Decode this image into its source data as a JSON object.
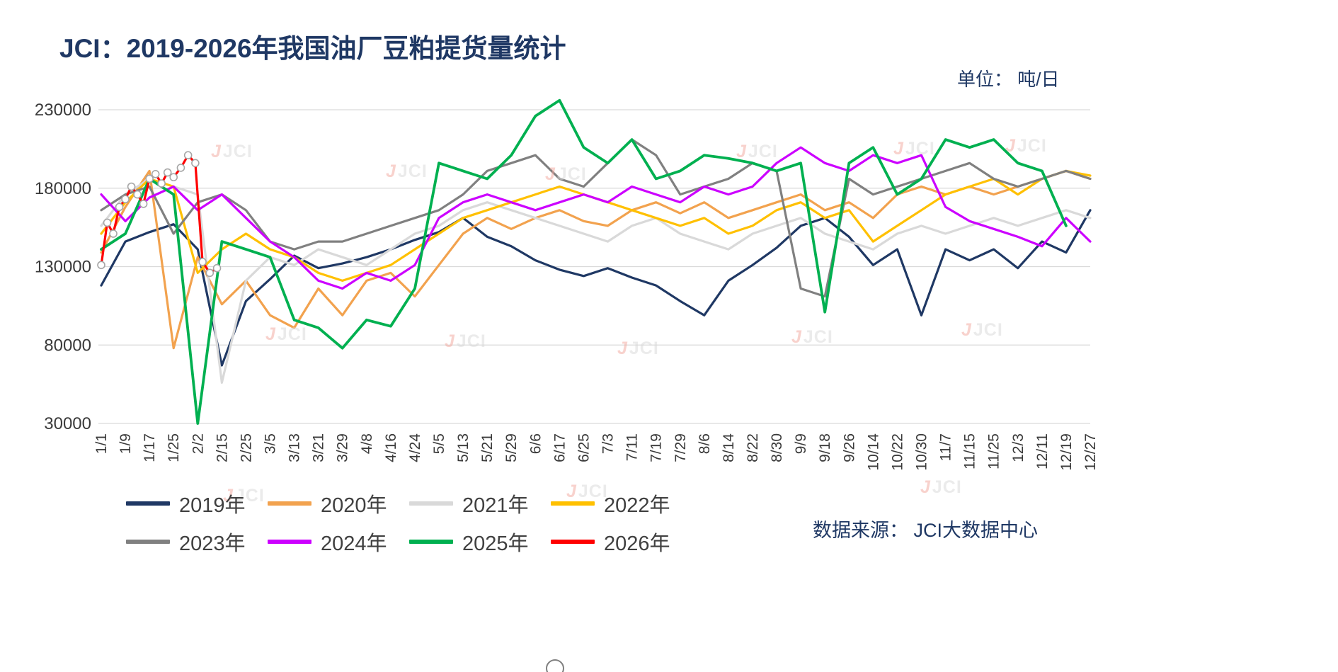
{
  "title": "JCI：2019-2026年我国油厂豆粕提货量统计",
  "unit_label": "单位： 吨/日",
  "source_label": "数据来源： JCI大数据中心",
  "watermark_text": "JCI",
  "colors": {
    "title": "#1F3864",
    "axis_text": "#3A3A3A",
    "grid": "#D9D9D9",
    "background": "#FFFFFF",
    "marker_fill": "#FFFFFF",
    "marker_stroke": "#A6A6A6"
  },
  "chart_data": {
    "type": "line",
    "title": "JCI：2019-2026年我国油厂豆粕提货量统计",
    "xlabel": "",
    "ylabel": "吨/日",
    "ylim": [
      30000,
      230000
    ],
    "yticks": [
      30000,
      80000,
      130000,
      180000,
      230000
    ],
    "grid": true,
    "legend_position": "bottom",
    "categories": [
      "1/1",
      "1/9",
      "1/17",
      "1/25",
      "2/2",
      "2/15",
      "2/25",
      "3/5",
      "3/13",
      "3/21",
      "3/29",
      "4/8",
      "4/16",
      "4/24",
      "5/5",
      "5/13",
      "5/21",
      "5/29",
      "6/6",
      "6/17",
      "6/25",
      "7/3",
      "7/11",
      "7/19",
      "7/29",
      "8/6",
      "8/14",
      "8/22",
      "8/30",
      "9/9",
      "9/18",
      "9/26",
      "10/14",
      "10/22",
      "10/30",
      "11/7",
      "11/15",
      "11/25",
      "12/3",
      "12/11",
      "12/19",
      "12/27"
    ],
    "series": [
      {
        "name": "2019年",
        "color": "#1F3864",
        "values": [
          118000,
          146000,
          152000,
          157000,
          141000,
          67000,
          108000,
          122000,
          137000,
          129000,
          132000,
          136000,
          141000,
          147000,
          152000,
          161000,
          149000,
          143000,
          134000,
          128000,
          124000,
          129000,
          123000,
          118000,
          108000,
          99000,
          121000,
          131000,
          142000,
          156000,
          161000,
          149000,
          131000,
          141000,
          99000,
          141000,
          134000,
          141000,
          129000,
          146000,
          139000,
          166000
        ]
      },
      {
        "name": "2020年",
        "color": "#F2A24E",
        "values": [
          139000,
          168000,
          191000,
          78000,
          136000,
          106000,
          121000,
          99000,
          91000,
          116000,
          99000,
          121000,
          126000,
          111000,
          131000,
          151000,
          161000,
          154000,
          161000,
          166000,
          159000,
          156000,
          166000,
          171000,
          164000,
          171000,
          161000,
          166000,
          171000,
          176000,
          166000,
          171000,
          161000,
          176000,
          181000,
          176000,
          181000,
          176000,
          181000,
          186000,
          191000,
          186000
        ]
      },
      {
        "name": "2021年",
        "color": "#D9D9D9",
        "values": [
          156000,
          176000,
          186000,
          181000,
          176000,
          56000,
          121000,
          136000,
          131000,
          141000,
          136000,
          131000,
          141000,
          151000,
          156000,
          166000,
          171000,
          166000,
          161000,
          156000,
          151000,
          146000,
          156000,
          161000,
          151000,
          146000,
          141000,
          151000,
          156000,
          161000,
          151000,
          146000,
          141000,
          151000,
          156000,
          151000,
          156000,
          161000,
          156000,
          161000,
          166000,
          161000
        ]
      },
      {
        "name": "2022年",
        "color": "#FFC000",
        "values": [
          151000,
          171000,
          186000,
          181000,
          126000,
          141000,
          151000,
          141000,
          136000,
          126000,
          121000,
          126000,
          131000,
          141000,
          151000,
          161000,
          166000,
          171000,
          176000,
          181000,
          176000,
          171000,
          166000,
          161000,
          156000,
          161000,
          151000,
          156000,
          166000,
          171000,
          161000,
          166000,
          146000,
          156000,
          166000,
          176000,
          181000,
          186000,
          176000,
          186000,
          191000,
          188000
        ]
      },
      {
        "name": "2023年",
        "color": "#808080",
        "values": [
          166000,
          176000,
          181000,
          151000,
          171000,
          176000,
          166000,
          146000,
          141000,
          146000,
          146000,
          151000,
          156000,
          161000,
          166000,
          176000,
          191000,
          196000,
          201000,
          186000,
          181000,
          196000,
          211000,
          201000,
          176000,
          181000,
          186000,
          196000,
          191000,
          116000,
          111000,
          186000,
          176000,
          181000,
          186000,
          191000,
          196000,
          186000,
          181000,
          186000,
          191000,
          186000
        ]
      },
      {
        "name": "2024年",
        "color": "#CC00FF",
        "values": [
          176000,
          159000,
          174000,
          181000,
          166000,
          176000,
          161000,
          146000,
          136000,
          121000,
          116000,
          126000,
          121000,
          131000,
          161000,
          171000,
          176000,
          171000,
          166000,
          171000,
          176000,
          171000,
          181000,
          176000,
          171000,
          181000,
          176000,
          181000,
          196000,
          206000,
          196000,
          191000,
          201000,
          196000,
          201000,
          168000,
          159000,
          154000,
          149000,
          143000,
          161000,
          146000
        ]
      },
      {
        "name": "2025年",
        "color": "#00B050",
        "width": 3.8,
        "values": [
          141000,
          151000,
          186000,
          176000,
          30000,
          146000,
          141000,
          136000,
          96000,
          91000,
          78000,
          96000,
          92000,
          116000,
          196000,
          191000,
          186000,
          201000,
          226000,
          236000,
          206000,
          196000,
          211000,
          186000,
          191000,
          201000,
          199000,
          196000,
          191000,
          196000,
          101000,
          196000,
          206000,
          176000,
          186000,
          211000,
          206000,
          211000,
          196000,
          191000,
          156000,
          null
        ]
      },
      {
        "name": "2026年",
        "color": "#FF0000",
        "markers": true,
        "x": [
          0,
          0.25,
          0.5,
          0.75,
          1,
          1.25,
          1.5,
          1.75,
          2,
          2.25,
          2.5,
          2.75,
          3,
          3.3,
          3.6,
          3.9,
          4.2,
          4.5,
          4.8
        ],
        "values": [
          131000,
          158000,
          151000,
          168000,
          173000,
          181000,
          176000,
          170000,
          186000,
          189000,
          183000,
          190000,
          187000,
          193000,
          201000,
          196000,
          133000,
          126000,
          129000
        ]
      }
    ]
  }
}
